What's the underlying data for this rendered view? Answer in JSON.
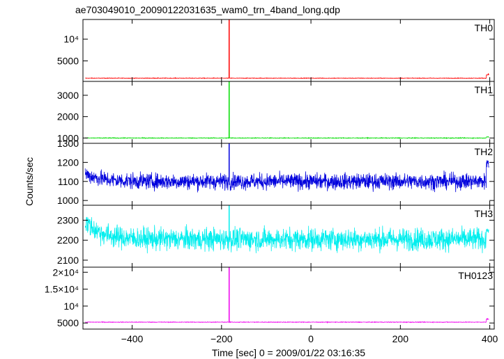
{
  "chart_data": {
    "type": "line",
    "title": "ae703049010_20090122031635_wam0_trn_4band_long.qdp",
    "xlabel": "Time [sec] 0 = 2009/01/22 03:16:35",
    "ylabel": "Counts/sec",
    "xlim": [
      -510,
      410
    ],
    "x_ticks": [
      -400,
      -200,
      0,
      200,
      400
    ],
    "x_tick_labels": [
      "−400",
      "−200",
      "0",
      "200",
      "400"
    ],
    "grid": false,
    "burst_time": -183,
    "panels": [
      {
        "name": "TH0",
        "color": "#ff0000",
        "ylim": [
          300,
          14500
        ],
        "yticks": [
          5000,
          10000
        ],
        "ytick_labels": [
          "5000",
          "10⁴"
        ],
        "baseline": 1050,
        "noise": 45,
        "peak": 14500,
        "end_spike": 2100
      },
      {
        "name": "TH1",
        "color": "#00dd00",
        "ylim": [
          750,
          3650
        ],
        "yticks": [
          1000,
          2000,
          3000
        ],
        "ytick_labels": [
          "1000",
          "2000",
          "3000"
        ],
        "baseline": 1000,
        "noise": 12,
        "peak": 3650,
        "end_spike": 1060
      },
      {
        "name": "TH2",
        "color": "#0000dd",
        "ylim": [
          975,
          1300
        ],
        "yticks": [
          1000,
          1100,
          1200,
          1300
        ],
        "ytick_labels": [
          "1000",
          "1100",
          "1200",
          "1300"
        ],
        "baseline": 1100,
        "noise": 30,
        "start_level": 1140,
        "peak": 1300,
        "end_spike": 1215
      },
      {
        "name": "TH3",
        "color": "#00eeee",
        "ylim": [
          2065,
          2375
        ],
        "yticks": [
          2100,
          2200,
          2300
        ],
        "ytick_labels": [
          "2100",
          "2200",
          "2300"
        ],
        "baseline": 2205,
        "noise": 40,
        "start_level": 2295,
        "peak": 2375,
        "end_spike": 2260
      },
      {
        "name": "TH0123",
        "color": "#ee00ee",
        "ylim": [
          3200,
          21500
        ],
        "yticks": [
          5000,
          10000,
          15000,
          20000
        ],
        "ytick_labels": [
          "5000",
          "10⁴",
          "1.5×10⁴",
          "2×10⁴"
        ],
        "baseline": 5250,
        "noise": 70,
        "peak": 21500,
        "end_spike": 6400
      }
    ]
  }
}
